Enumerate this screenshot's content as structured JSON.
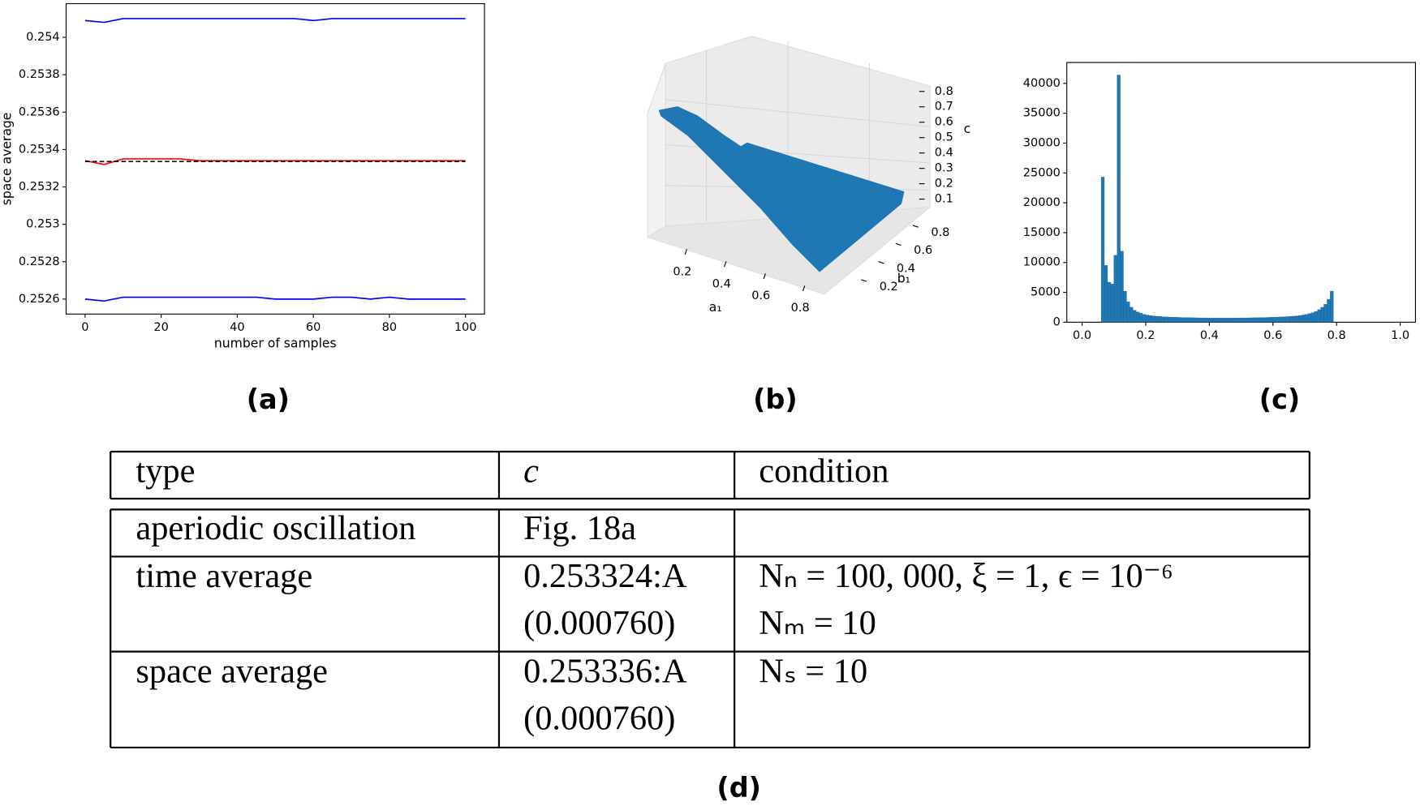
{
  "chart_data": [
    {
      "type": "line",
      "xlabel": "number of samples",
      "ylabel": "space average",
      "x": [
        0,
        5,
        10,
        15,
        20,
        25,
        30,
        35,
        40,
        45,
        50,
        55,
        60,
        65,
        70,
        75,
        80,
        85,
        90,
        95,
        100
      ],
      "series": [
        {
          "color": "#0000ff",
          "values": [
            0.25409,
            0.25408,
            0.2541,
            0.2541,
            0.2541,
            0.2541,
            0.2541,
            0.2541,
            0.2541,
            0.2541,
            0.2541,
            0.2541,
            0.25409,
            0.2541,
            0.2541,
            0.2541,
            0.2541,
            0.2541,
            0.2541,
            0.2541,
            0.2541
          ]
        },
        {
          "color": "#ff0000",
          "values": [
            0.25334,
            0.25332,
            0.25335,
            0.25335,
            0.25335,
            0.25335,
            0.25334,
            0.25334,
            0.25334,
            0.25334,
            0.25334,
            0.25334,
            0.25334,
            0.25334,
            0.25334,
            0.25334,
            0.25334,
            0.25334,
            0.25334,
            0.25334,
            0.25334
          ]
        },
        {
          "color": "#000000",
          "style": "dashed",
          "values": [
            0.253336,
            0.253336,
            0.253336,
            0.253336,
            0.253336,
            0.253336,
            0.253336,
            0.253336,
            0.253336,
            0.253336,
            0.253336,
            0.253336,
            0.253336,
            0.253336,
            0.253336,
            0.253336,
            0.253336,
            0.253336,
            0.253336,
            0.253336,
            0.253336
          ]
        },
        {
          "color": "#0000ff",
          "values": [
            0.2526,
            0.25259,
            0.25261,
            0.25261,
            0.25261,
            0.25261,
            0.25261,
            0.25261,
            0.25261,
            0.25261,
            0.2526,
            0.2526,
            0.2526,
            0.25261,
            0.25261,
            0.2526,
            0.25261,
            0.2526,
            0.2526,
            0.2526,
            0.2526
          ]
        }
      ],
      "xlim": [
        -5,
        105
      ],
      "xticks": [
        0,
        20,
        40,
        60,
        80,
        100
      ],
      "ylim": [
        0.25252,
        0.25418
      ],
      "yticks": [
        0.2526,
        0.2528,
        0.253,
        0.2532,
        0.2534,
        0.2536,
        0.2538,
        0.254
      ]
    },
    {
      "type": "surface",
      "xlabel": "a₁",
      "ylabel": "b₁",
      "zlabel": "c",
      "color": "#1f77b4",
      "xticks": [
        0.2,
        0.4,
        0.6,
        0.8
      ],
      "yticks": [
        0.2,
        0.4,
        0.6,
        0.8
      ],
      "zticks": [
        0.1,
        0.2,
        0.3,
        0.4,
        0.5,
        0.6,
        0.7,
        0.8
      ]
    },
    {
      "type": "histogram",
      "color": "#1f77b4",
      "bins": [
        0.06,
        0.07,
        0.08,
        0.09,
        0.1,
        0.11,
        0.12,
        0.13,
        0.14,
        0.15,
        0.16,
        0.17,
        0.18,
        0.19,
        0.2,
        0.21,
        0.22,
        0.23,
        0.24,
        0.25,
        0.26,
        0.27,
        0.28,
        0.29,
        0.3,
        0.31,
        0.32,
        0.33,
        0.34,
        0.35,
        0.36,
        0.37,
        0.38,
        0.39,
        0.4,
        0.41,
        0.42,
        0.43,
        0.44,
        0.45,
        0.46,
        0.47,
        0.48,
        0.49,
        0.5,
        0.51,
        0.52,
        0.53,
        0.54,
        0.55,
        0.56,
        0.57,
        0.58,
        0.59,
        0.6,
        0.61,
        0.62,
        0.63,
        0.64,
        0.65,
        0.66,
        0.67,
        0.68,
        0.69,
        0.7,
        0.71,
        0.72,
        0.73,
        0.74,
        0.75,
        0.76,
        0.77,
        0.78,
        0.79
      ],
      "values": [
        24300,
        9500,
        6700,
        6400,
        11200,
        41400,
        11900,
        5200,
        3400,
        2500,
        2000,
        1700,
        1500,
        1300,
        1200,
        1100,
        1050,
        1000,
        950,
        900,
        880,
        860,
        840,
        820,
        800,
        780,
        770,
        760,
        750,
        740,
        730,
        720,
        720,
        710,
        710,
        700,
        700,
        700,
        700,
        700,
        700,
        700,
        710,
        710,
        720,
        720,
        730,
        740,
        750,
        760,
        770,
        780,
        800,
        820,
        840,
        860,
        880,
        900,
        930,
        960,
        1000,
        1050,
        1100,
        1200,
        1300,
        1450,
        1600,
        1800,
        2100,
        2500,
        3000,
        3800,
        5200
      ],
      "xlim": [
        -0.048,
        1.048
      ],
      "xticks": [
        {
          "value": 0,
          "label": "0.0"
        },
        0.2,
        0.4,
        0.6,
        0.8,
        {
          "value": 1,
          "label": "1.0"
        }
      ],
      "ylim": [
        0,
        43500
      ],
      "yticks": [
        0,
        5000,
        10000,
        15000,
        20000,
        25000,
        30000,
        35000,
        40000
      ]
    }
  ],
  "captions": [
    "(a)",
    "(b)",
    "(c)",
    "(d)"
  ],
  "table": {
    "header": [
      "type",
      "c",
      "condition"
    ],
    "rows": [
      [
        [
          "aperiodic oscillation"
        ],
        [
          "Fig. 18a"
        ],
        []
      ],
      [
        [
          "time average"
        ],
        [
          "0.253324:A",
          "(0.000760)"
        ],
        [
          "Nₙ = 100, 000, ξ = 1, ϵ = 10⁻⁶",
          "Nₘ = 10"
        ]
      ],
      [
        [
          "space average"
        ],
        [
          "0.253336:A",
          "(0.000760)"
        ],
        [
          "Nₛ = 10"
        ]
      ]
    ]
  }
}
